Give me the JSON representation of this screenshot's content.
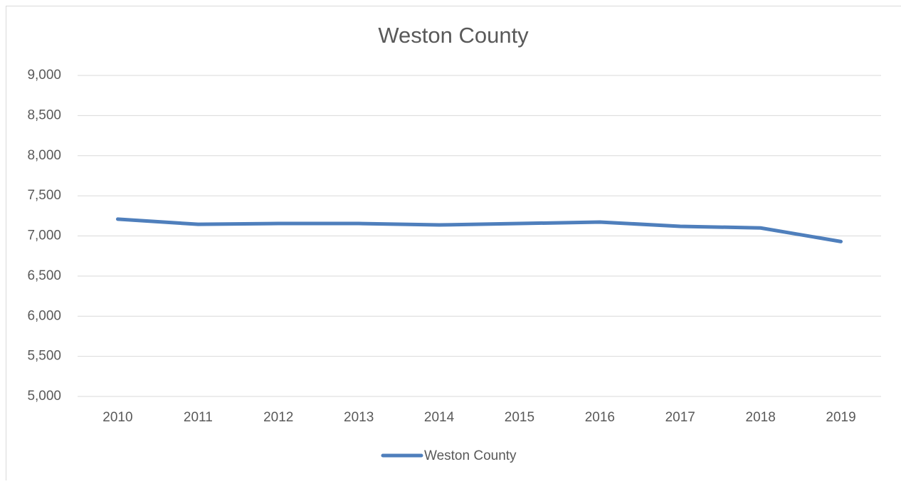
{
  "chart_data": {
    "type": "line",
    "title": "Weston County",
    "categories": [
      "2010",
      "2011",
      "2012",
      "2013",
      "2014",
      "2015",
      "2016",
      "2017",
      "2018",
      "2019"
    ],
    "series": [
      {
        "name": "Weston County",
        "color": "#4f7fbc",
        "values": [
          7210,
          7145,
          7155,
          7155,
          7137,
          7155,
          7173,
          7120,
          7100,
          6930
        ]
      }
    ],
    "ylim": [
      5000,
      9000
    ],
    "yticks": [
      {
        "value": 5000,
        "label": "5,000"
      },
      {
        "value": 5500,
        "label": "5,500"
      },
      {
        "value": 6000,
        "label": "6,000"
      },
      {
        "value": 6500,
        "label": "6,500"
      },
      {
        "value": 7000,
        "label": "7,000"
      },
      {
        "value": 7500,
        "label": "7,500"
      },
      {
        "value": 8000,
        "label": "8,000"
      },
      {
        "value": 8500,
        "label": "8,500"
      },
      {
        "value": 9000,
        "label": "9,000"
      }
    ],
    "grid": true,
    "legend": "bottom"
  }
}
